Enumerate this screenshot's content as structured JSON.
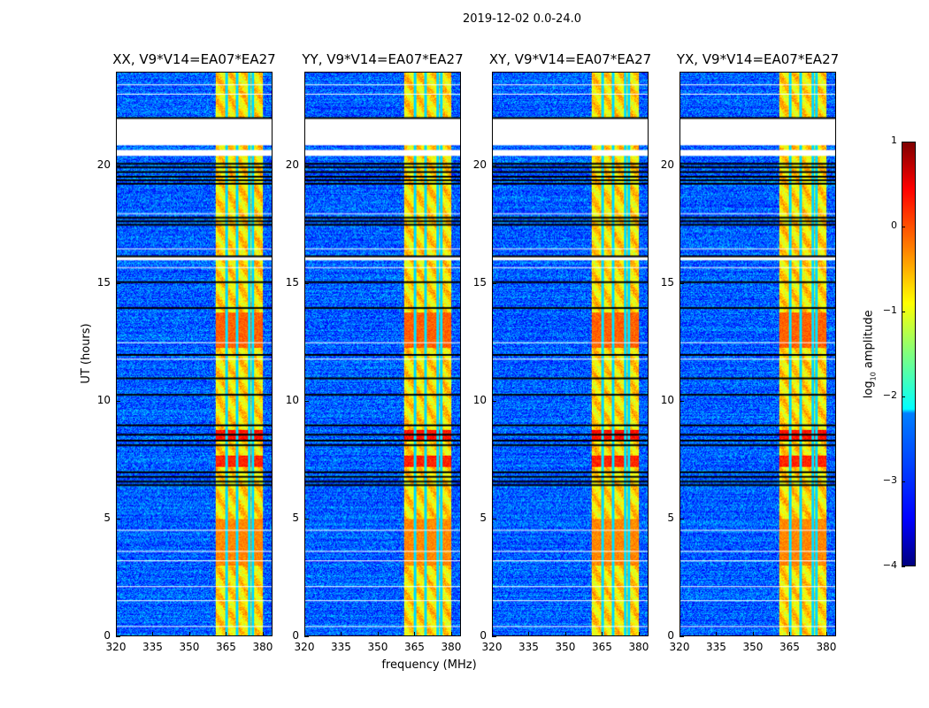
{
  "chart_data": {
    "type": "heatmap",
    "suptitle": "2019-12-02 0.0-24.0",
    "panels": [
      {
        "title": "XX, V9*V14=EA07*EA27"
      },
      {
        "title": "YY, V9*V14=EA07*EA27"
      },
      {
        "title": "XY, V9*V14=EA07*EA27"
      },
      {
        "title": "YX, V9*V14=EA07*EA27"
      }
    ],
    "xlabel": "frequency (MHz)",
    "ylabel": "UT (hours)",
    "xlim": [
      320,
      384
    ],
    "ylim": [
      0,
      24
    ],
    "xticks": [
      "320",
      "335",
      "350",
      "365",
      "380"
    ],
    "xtick_values": [
      320,
      335,
      350,
      365,
      380
    ],
    "yticks": [
      "0",
      "5",
      "10",
      "15",
      "20"
    ],
    "ytick_values": [
      0,
      5,
      10,
      15,
      20
    ],
    "colorbar": {
      "label_base": "log",
      "label_sub": "10",
      "label_rest": " amplitude",
      "range": [
        -4,
        1
      ],
      "ticks": [
        "1",
        "0",
        "−1",
        "−2",
        "−3",
        "−4"
      ],
      "tick_values": [
        1,
        0,
        -1,
        -2,
        -3,
        -4
      ],
      "colormap": "jet"
    },
    "features": {
      "background_log_amp": -2.9,
      "bright_band_mhz": [
        360.7,
        380.3
      ],
      "bright_band_log_amp": -0.9,
      "band_notches_mhz": [
        365.3,
        369.6,
        374.6,
        376.0
      ],
      "flagged_blank_hours": [
        [
          20.9,
          22.05
        ],
        [
          20.45,
          20.7
        ],
        [
          16.0,
          16.15
        ]
      ],
      "black_line_hours": [
        19.3,
        19.45,
        19.6,
        19.8,
        20.0,
        20.15,
        17.55,
        17.7,
        17.85,
        16.2,
        15.1,
        14.0,
        12.0,
        11.0,
        10.3,
        9.0,
        8.6,
        8.35,
        8.15,
        7.0,
        6.8,
        6.6,
        6.45,
        22.1
      ],
      "white_line_hours": [
        23.5,
        23.1,
        18.0,
        16.5,
        15.7,
        4.5,
        3.6,
        3.2,
        2.1,
        1.5,
        0.4,
        12.5,
        11.8
      ],
      "strong_events": [
        {
          "hours": [
            7.2,
            7.7
          ],
          "log_amp": 0.2
        },
        {
          "hours": [
            8.3,
            8.8
          ],
          "log_amp": 0.3
        },
        {
          "hours": [
            12.3,
            13.8
          ],
          "log_amp": -0.1
        },
        {
          "hours": [
            3.0,
            5.0
          ],
          "log_amp": -0.3
        }
      ]
    }
  }
}
